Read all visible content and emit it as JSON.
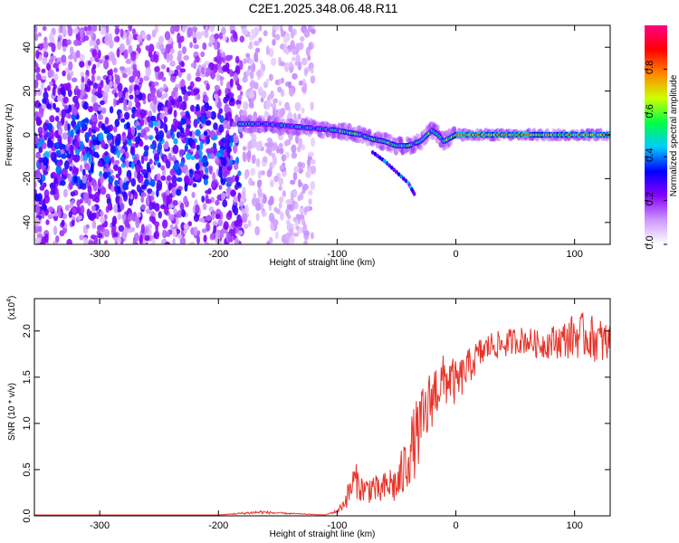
{
  "title": "C2E1.2025.348.06.48.R11",
  "chart_data": [
    {
      "type": "heatmap",
      "xlabel": "Height of straight line (km)",
      "ylabel": "Frequency (Hz)",
      "xlim": [
        -355,
        130
      ],
      "ylim": [
        -50,
        50
      ],
      "xticks": [
        -300,
        -200,
        -100,
        0,
        100
      ],
      "yticks": [
        -40,
        -20,
        0,
        20,
        40
      ],
      "xtick_labels": [
        "-300",
        "-200",
        "-100",
        "0",
        "100"
      ],
      "ytick_labels": [
        "-40",
        "-20",
        "0",
        "20",
        "40"
      ],
      "colorbar": {
        "label": "Normalized spectral amplitude",
        "range": [
          0,
          1
        ],
        "ticks": [
          0.0,
          0.2,
          0.4,
          0.6,
          0.8
        ],
        "tick_labels": [
          "0.0",
          "0.2",
          "0.4",
          "0.6",
          "0.8"
        ],
        "colors": [
          "#ffffff",
          "#cc99ff",
          "#8800ff",
          "#0000ff",
          "#00ccff",
          "#00ff44",
          "#ccff00",
          "#ff8800",
          "#ff0000",
          "#ff0088"
        ]
      },
      "ridge": {
        "x": [
          -180,
          -160,
          -140,
          -120,
          -100,
          -90,
          -80,
          -70,
          -60,
          -50,
          -40,
          -30,
          -20,
          -15,
          -10,
          0,
          20,
          60,
          100,
          130
        ],
        "y": [
          5,
          5,
          4,
          3,
          2,
          1,
          0,
          -2,
          -3,
          -5,
          -5,
          -3,
          2,
          0,
          -3,
          0,
          0,
          0,
          0,
          0
        ]
      },
      "secondary_branch": {
        "x": [
          -70,
          -60,
          -50,
          -40,
          -35
        ],
        "y": [
          -8,
          -12,
          -17,
          -22,
          -27
        ]
      },
      "noise_region_x": [
        -355,
        -180
      ]
    },
    {
      "type": "line",
      "xlabel": "Height of straight line (km)",
      "ylabel": "SNR (10 * v/v)",
      "yscale_label": "(x10",
      "yscale_exp": "4",
      "yscale_suffix": ")",
      "xlim": [
        -355,
        130
      ],
      "ylim": [
        0,
        2.35
      ],
      "xticks": [
        -300,
        -200,
        -100,
        0,
        100
      ],
      "yticks": [
        0.0,
        0.5,
        1.0,
        1.5,
        2.0
      ],
      "xtick_labels": [
        "-300",
        "-200",
        "-100",
        "0",
        "100"
      ],
      "ytick_labels": [
        "0.0",
        "0.5",
        "1.0",
        "1.5",
        "2.0"
      ],
      "series": [
        {
          "name": "SNR",
          "color": "#e8332a",
          "x": [
            -355,
            -200,
            -165,
            -150,
            -110,
            -100,
            -95,
            -90,
            -85,
            -80,
            -75,
            -70,
            -65,
            -60,
            -55,
            -50,
            -45,
            -40,
            -35,
            -30,
            -25,
            -20,
            -15,
            -10,
            -5,
            0,
            5,
            10,
            20,
            30,
            40,
            50,
            60,
            70,
            80,
            90,
            100,
            110,
            120,
            130
          ],
          "y": [
            0.01,
            0.01,
            0.04,
            0.03,
            0.01,
            0.05,
            0.12,
            0.25,
            0.4,
            0.3,
            0.28,
            0.32,
            0.25,
            0.3,
            0.35,
            0.32,
            0.45,
            0.65,
            0.8,
            0.95,
            1.1,
            1.3,
            1.4,
            1.45,
            1.5,
            1.42,
            1.5,
            1.6,
            1.75,
            1.85,
            1.85,
            1.9,
            1.9,
            1.85,
            1.88,
            1.9,
            1.95,
            1.95,
            1.9,
            1.85
          ],
          "noise_amp": [
            0.0,
            0.0,
            0.02,
            0.01,
            0.0,
            0.02,
            0.06,
            0.15,
            0.2,
            0.15,
            0.15,
            0.18,
            0.15,
            0.18,
            0.2,
            0.22,
            0.3,
            0.35,
            0.4,
            0.4,
            0.38,
            0.35,
            0.32,
            0.3,
            0.28,
            0.25,
            0.22,
            0.2,
            0.18,
            0.15,
            0.15,
            0.15,
            0.15,
            0.15,
            0.18,
            0.2,
            0.25,
            0.25,
            0.25,
            0.25
          ]
        }
      ]
    }
  ]
}
